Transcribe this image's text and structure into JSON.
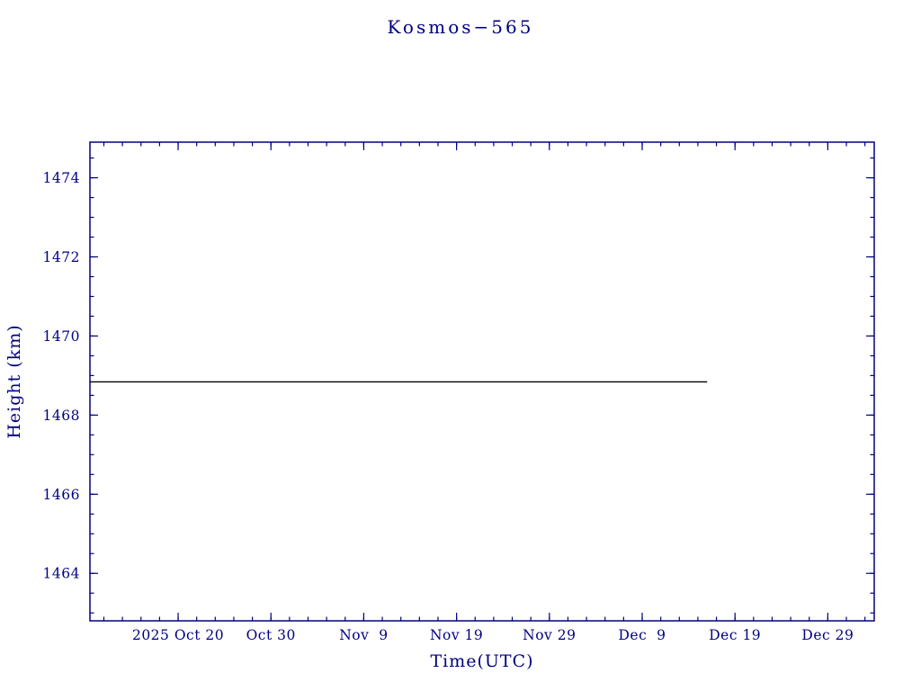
{
  "chart_data": {
    "type": "line",
    "title": "Kosmos−565",
    "xlabel": "Time(UTC)",
    "ylabel": "Height (km)",
    "axis_color": "#000080",
    "x_unit": "days relative to 2025 Oct 20",
    "xlim": [
      -9.5,
      75.0
    ],
    "ylim": [
      1462.8,
      1474.9
    ],
    "x_ticks": [
      {
        "day": 0,
        "label": "2025 Oct 20"
      },
      {
        "day": 10,
        "label": "Oct 30"
      },
      {
        "day": 20,
        "label": "Nov  9"
      },
      {
        "day": 30,
        "label": "Nov 19"
      },
      {
        "day": 40,
        "label": "Nov 29"
      },
      {
        "day": 50,
        "label": "Dec  9"
      },
      {
        "day": 60,
        "label": "Dec 19"
      },
      {
        "day": 70,
        "label": "Dec 29"
      }
    ],
    "x_minor_step": 2,
    "y_ticks": [
      1464,
      1466,
      1468,
      1470,
      1472,
      1474
    ],
    "y_minor_step": 0.5,
    "series": [
      {
        "name": "height",
        "color": "#000000",
        "points": [
          {
            "day": -9.5,
            "height_km": 1468.84
          },
          {
            "day": 57.0,
            "height_km": 1468.84
          }
        ]
      }
    ]
  }
}
